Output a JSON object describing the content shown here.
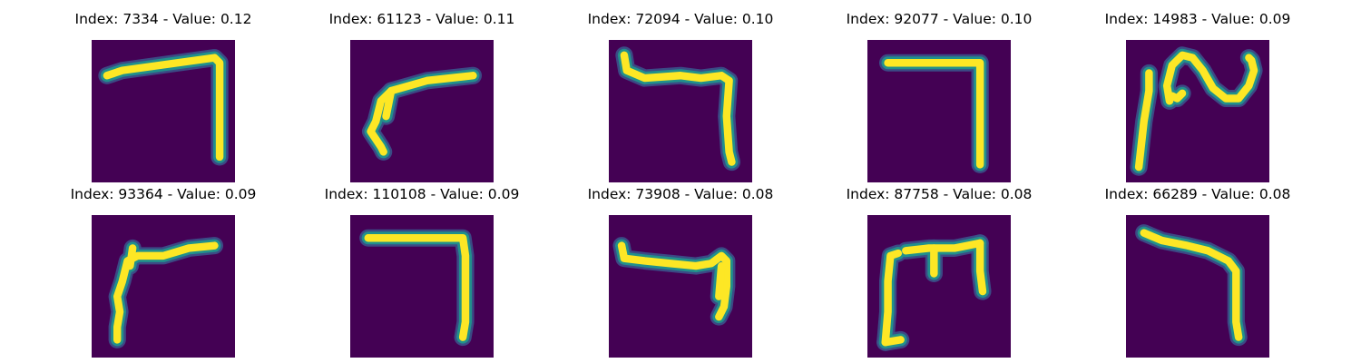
{
  "colors": {
    "background": "#440154",
    "stroke_core": "#FDE725",
    "stroke_mid": "#21908C",
    "stroke_edge": "#3B528B"
  },
  "panels": [
    {
      "index": "7334",
      "value": "0.12",
      "title": "Index: 7334 - Value: 0.12"
    },
    {
      "index": "61123",
      "value": "0.11",
      "title": "Index: 61123 - Value: 0.11"
    },
    {
      "index": "72094",
      "value": "0.10",
      "title": "Index: 72094 - Value: 0.10"
    },
    {
      "index": "92077",
      "value": "0.10",
      "title": "Index: 92077 - Value: 0.10"
    },
    {
      "index": "14983",
      "value": "0.09",
      "title": "Index: 14983 - Value: 0.09"
    },
    {
      "index": "93364",
      "value": "0.09",
      "title": "Index: 93364 - Value: 0.09"
    },
    {
      "index": "110108",
      "value": "0.09",
      "title": "Index: 110108 - Value: 0.09"
    },
    {
      "index": "73908",
      "value": "0.08",
      "title": "Index: 73908 - Value: 0.08"
    },
    {
      "index": "87758",
      "value": "0.08",
      "title": "Index: 87758 - Value: 0.08"
    },
    {
      "index": "66289",
      "value": "0.08",
      "title": "Index: 66289 - Value: 0.08"
    }
  ]
}
